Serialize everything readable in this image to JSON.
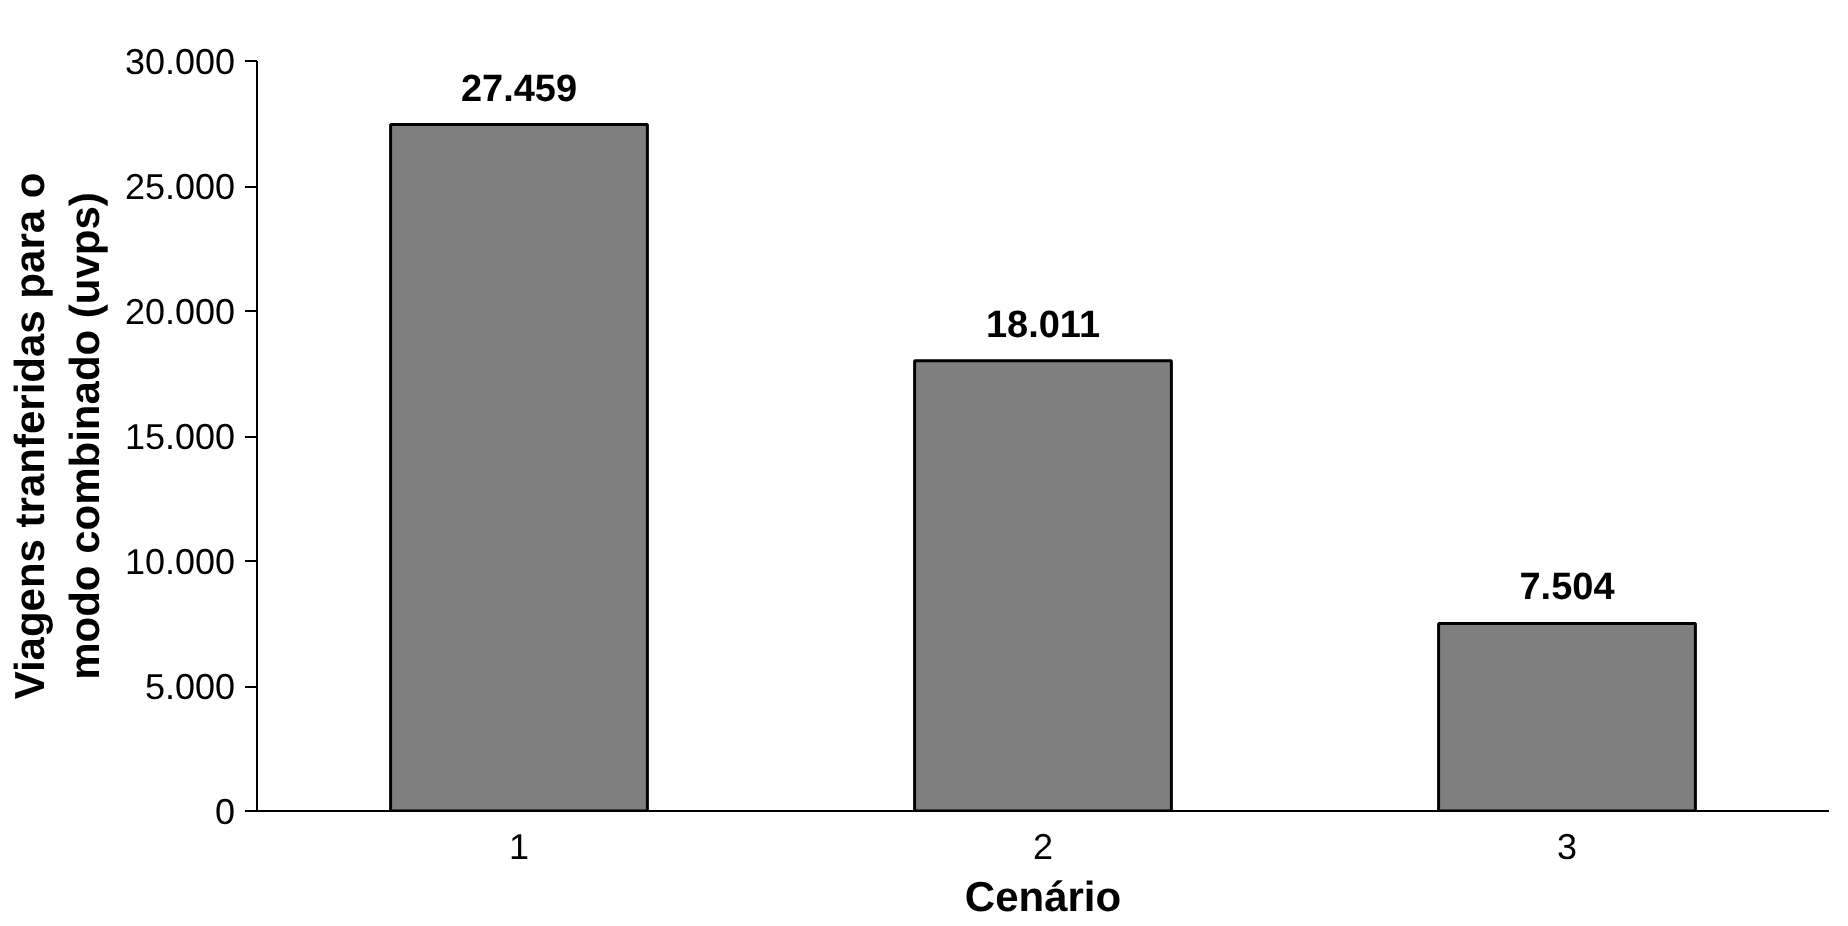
{
  "chart_data": {
    "type": "bar",
    "xlabel": "Cenário",
    "ylabel": "Viagens tranferidas para o\nmodo combinado (uvps)",
    "categories": [
      "1",
      "2",
      "3"
    ],
    "values": [
      27459,
      18011,
      7504
    ],
    "value_labels": [
      "27.459",
      "18.011",
      "7.504"
    ],
    "color": "#7f7f7f",
    "ylim": [
      0,
      30000
    ],
    "yticks": [
      {
        "value": 0,
        "label": "0"
      },
      {
        "value": 5000,
        "label": "5.000"
      },
      {
        "value": 10000,
        "label": "10.000"
      },
      {
        "value": 15000,
        "label": "15.000"
      },
      {
        "value": 20000,
        "label": "20.000"
      },
      {
        "value": 25000,
        "label": "25.000"
      },
      {
        "value": 30000,
        "label": "30.000"
      }
    ],
    "grid": false
  }
}
